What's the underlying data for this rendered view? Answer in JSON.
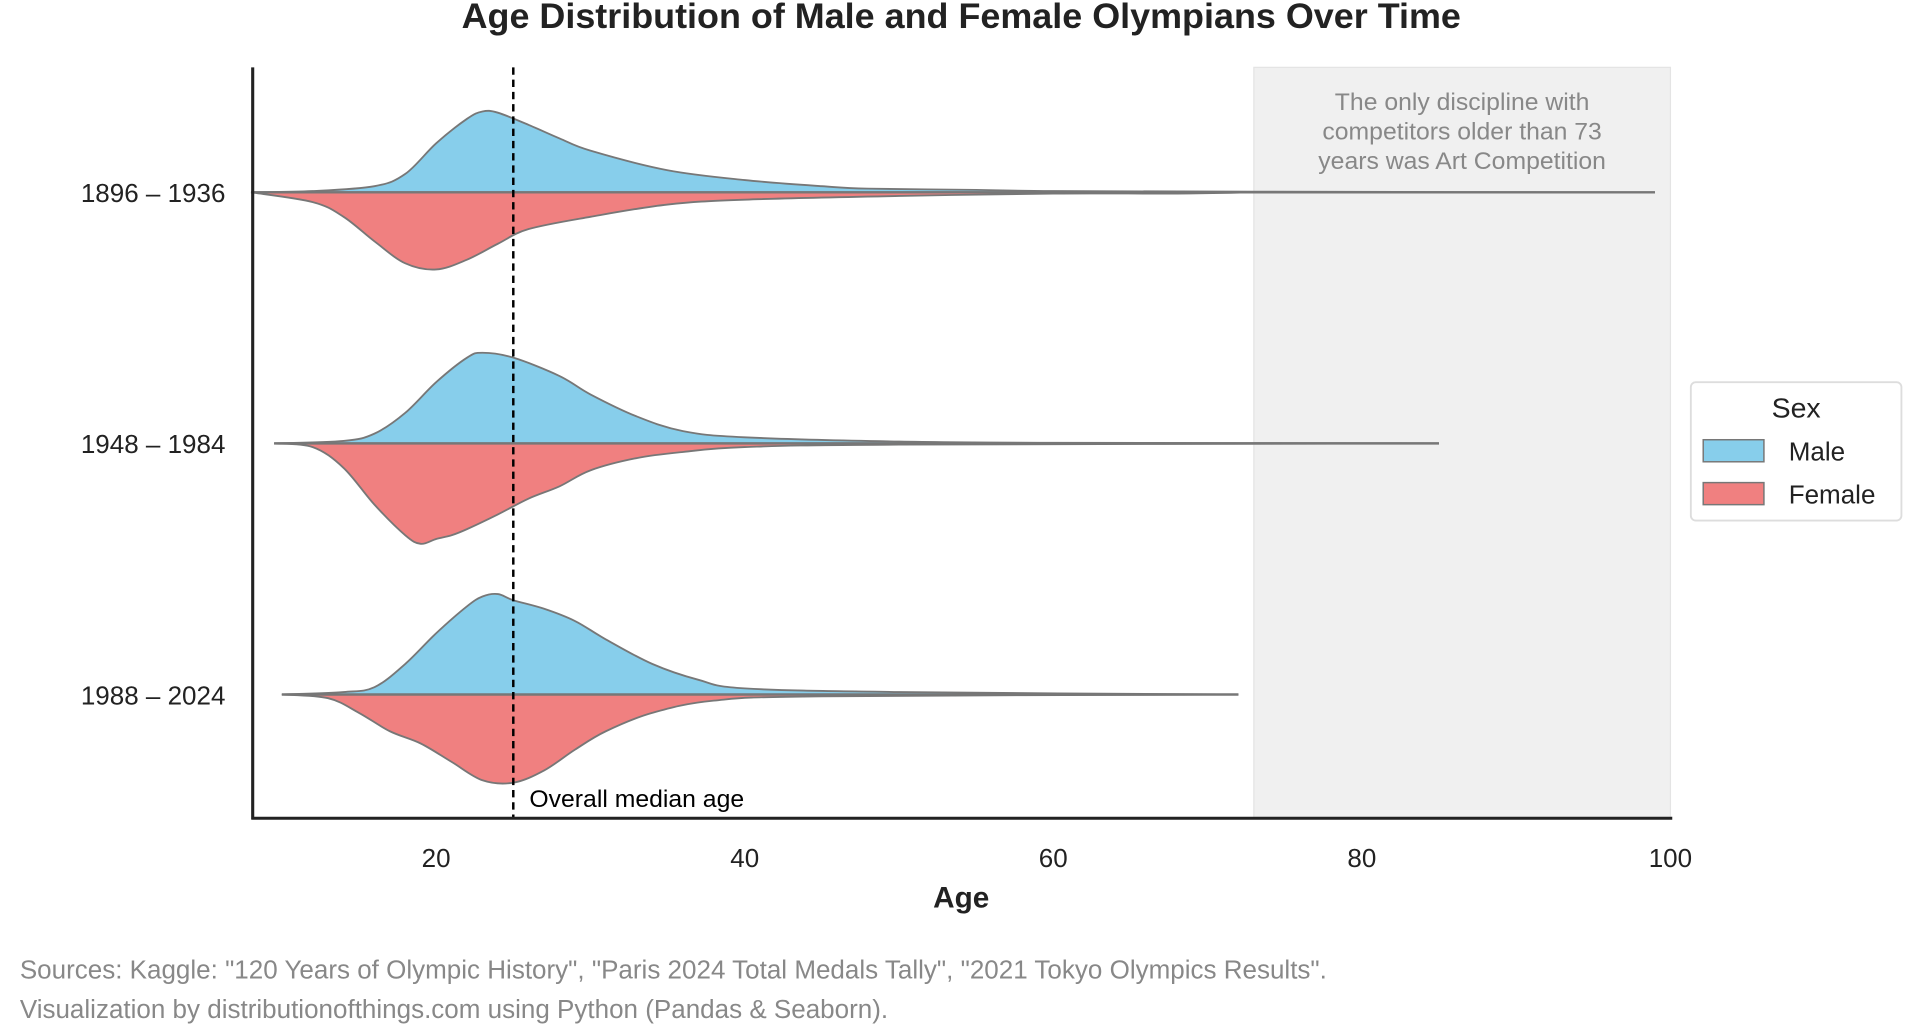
{
  "chart_data": {
    "type": "violin",
    "title": "Age Distribution of Male and Female Olympians Over Time",
    "xlabel": "Age",
    "ylabel": "",
    "xlim": [
      8,
      100
    ],
    "xticks": [
      20,
      40,
      60,
      80,
      100
    ],
    "categories": [
      "1896 – 1936",
      "1948 – 1984",
      "1988 – 2024"
    ],
    "legend": {
      "title": "Sex",
      "position": "right",
      "entries": [
        "Male",
        "Female"
      ]
    },
    "colors": {
      "Male": "#87CEEB",
      "Female": "#F08080"
    },
    "grid": false,
    "median_line": {
      "age": 25,
      "label": "Overall median age"
    },
    "shaded_region": {
      "from": 73,
      "to": 100,
      "label": "The only discipline with competitors older than 73 years was Art Competition",
      "label_lines": [
        "The only discipline with",
        "competitors older than 73",
        "years was Art Competition"
      ]
    },
    "series": [
      {
        "name": "Male",
        "groups": [
          [
            [
              8,
              0
            ],
            [
              12,
              1
            ],
            [
              16,
              5
            ],
            [
              18,
              15
            ],
            [
              20,
              40
            ],
            [
              22,
              60
            ],
            [
              23,
              66
            ],
            [
              24,
              65
            ],
            [
              26,
              55
            ],
            [
              28,
              44
            ],
            [
              30,
              34
            ],
            [
              35,
              18
            ],
            [
              40,
              10
            ],
            [
              45,
              5
            ],
            [
              48,
              3
            ],
            [
              55,
              2
            ],
            [
              60,
              1
            ],
            [
              73,
              0.5
            ],
            [
              99,
              0
            ]
          ],
          [
            [
              9.5,
              0
            ],
            [
              14,
              2
            ],
            [
              16,
              8
            ],
            [
              18,
              25
            ],
            [
              20,
              50
            ],
            [
              22,
              70
            ],
            [
              23,
              74
            ],
            [
              25,
              70
            ],
            [
              28,
              55
            ],
            [
              30,
              40
            ],
            [
              33,
              22
            ],
            [
              36,
              10
            ],
            [
              40,
              5
            ],
            [
              50,
              1.5
            ],
            [
              60,
              0.5
            ],
            [
              85,
              0
            ]
          ],
          [
            [
              10,
              0
            ],
            [
              14,
              2
            ],
            [
              16,
              6
            ],
            [
              18,
              25
            ],
            [
              20,
              50
            ],
            [
              22,
              72
            ],
            [
              23,
              80
            ],
            [
              24,
              82
            ],
            [
              25,
              77
            ],
            [
              27,
              70
            ],
            [
              29,
              60
            ],
            [
              31,
              45
            ],
            [
              34,
              25
            ],
            [
              37,
              12
            ],
            [
              40,
              5
            ],
            [
              50,
              2
            ],
            [
              72,
              0
            ]
          ]
        ]
      },
      {
        "name": "Female",
        "groups": [
          [
            [
              8,
              0
            ],
            [
              12,
              8
            ],
            [
              14,
              20
            ],
            [
              16,
              40
            ],
            [
              18,
              58
            ],
            [
              20,
              63
            ],
            [
              22,
              55
            ],
            [
              24,
              42
            ],
            [
              26,
              30
            ],
            [
              30,
              20
            ],
            [
              35,
              10
            ],
            [
              40,
              6
            ],
            [
              50,
              3
            ],
            [
              60,
              1
            ],
            [
              68,
              1
            ],
            [
              73,
              0
            ]
          ],
          [
            [
              9.5,
              0
            ],
            [
              12,
              3
            ],
            [
              14,
              20
            ],
            [
              16,
              50
            ],
            [
              18,
              75
            ],
            [
              19,
              82
            ],
            [
              20,
              78
            ],
            [
              21,
              75
            ],
            [
              22,
              70
            ],
            [
              24,
              58
            ],
            [
              26,
              45
            ],
            [
              28,
              35
            ],
            [
              30,
              22
            ],
            [
              33,
              12
            ],
            [
              36,
              7
            ],
            [
              40,
              3
            ],
            [
              50,
              1
            ],
            [
              85,
              0
            ]
          ],
          [
            [
              10,
              0
            ],
            [
              13,
              3
            ],
            [
              15,
              15
            ],
            [
              17,
              30
            ],
            [
              19,
              40
            ],
            [
              21,
              55
            ],
            [
              23,
              70
            ],
            [
              25,
              72
            ],
            [
              27,
              62
            ],
            [
              29,
              45
            ],
            [
              31,
              30
            ],
            [
              34,
              15
            ],
            [
              38,
              5
            ],
            [
              45,
              1.5
            ],
            [
              72,
              0
            ]
          ]
        ]
      }
    ]
  },
  "footer": {
    "sources": "Sources: Kaggle: \"120 Years of Olympic History\", \"Paris 2024 Total Medals Tally\", \"2021 Tokyo Olympics Results\".",
    "credit": "Visualization by distributionofthings.com using Python (Pandas & Seaborn)."
  }
}
